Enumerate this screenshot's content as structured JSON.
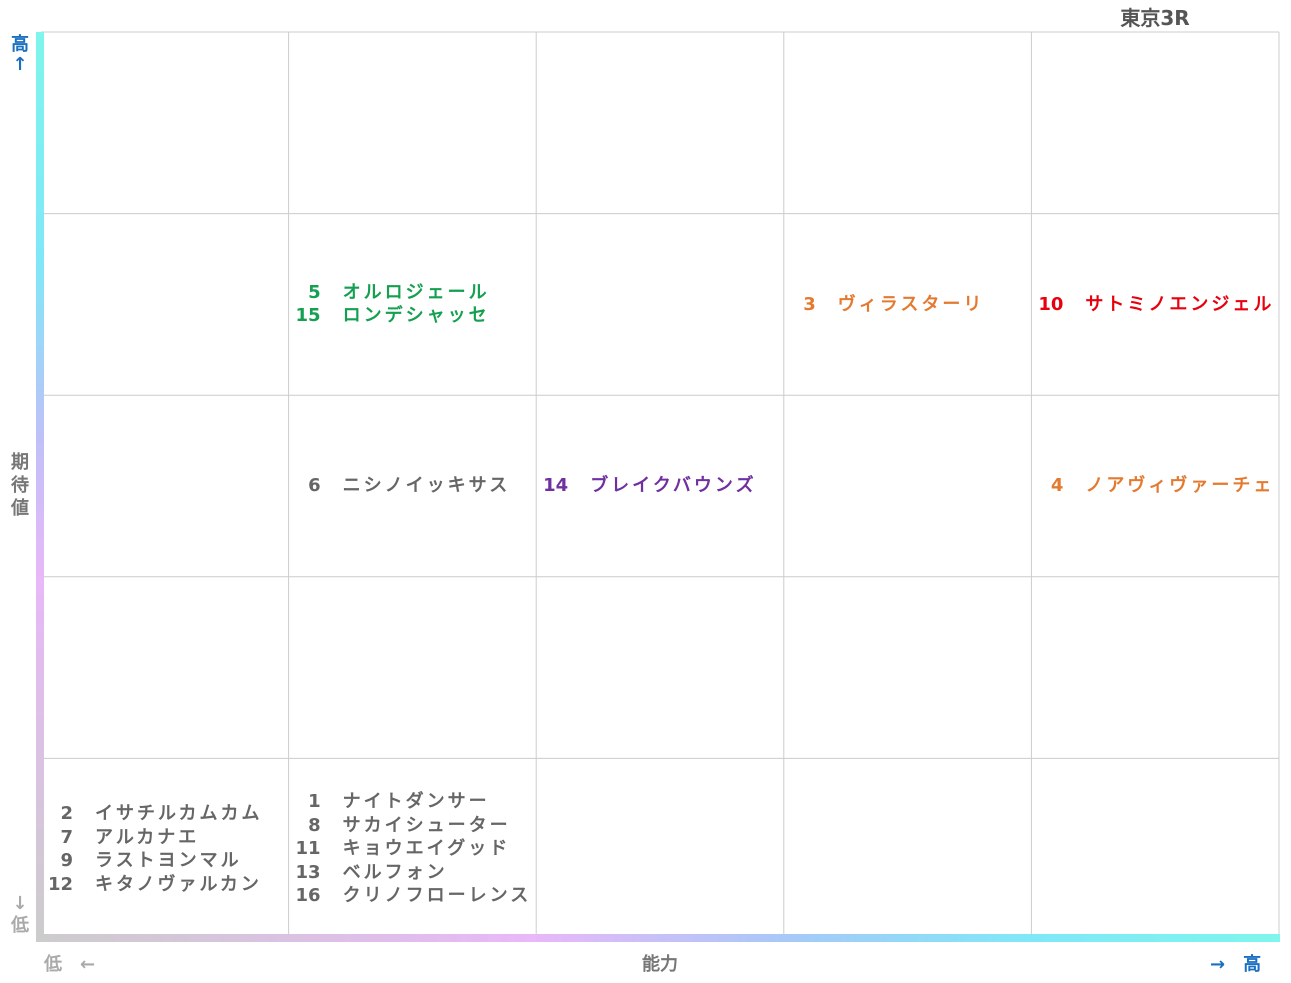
{
  "title": "東京3R",
  "y_axis": {
    "top": [
      "高",
      "↑"
    ],
    "title": [
      "期",
      "待",
      "値"
    ],
    "bottom": [
      "↓",
      "低"
    ]
  },
  "x_axis": {
    "left": "低　←",
    "title": "能力",
    "right": "→　高"
  },
  "grid": [
    [
      [],
      [],
      [],
      [],
      []
    ],
    [
      [],
      [
        {
          "number": 5,
          "name": "オルロジェール",
          "color": "#14a050"
        },
        {
          "number": 15,
          "name": "ロンデシャッセ",
          "color": "#14a050"
        }
      ],
      [],
      [
        {
          "number": 3,
          "name": "ヴィラスターリ",
          "color": "#e47a30"
        }
      ],
      [
        {
          "number": 10,
          "name": "サトミノエンジェル",
          "color": "#e8000e"
        }
      ]
    ],
    [
      [],
      [
        {
          "number": 6,
          "name": "ニシノイッキサス",
          "color": "#666666"
        }
      ],
      [
        {
          "number": 14,
          "name": "ブレイクバウンズ",
          "color": "#7030a0"
        }
      ],
      [],
      [
        {
          "number": 4,
          "name": "ノアヴィヴァーチェ",
          "color": "#e47a30"
        }
      ]
    ],
    [
      [],
      [],
      [],
      [],
      []
    ],
    [
      [
        {
          "number": 2,
          "name": "イサチルカムカム",
          "color": "#666666"
        },
        {
          "number": 7,
          "name": "アルカナエ",
          "color": "#666666"
        },
        {
          "number": 9,
          "name": "ラストヨンマル",
          "color": "#666666"
        },
        {
          "number": 12,
          "name": "キタノヴァルカン",
          "color": "#666666"
        }
      ],
      [
        {
          "number": 1,
          "name": "ナイトダンサー",
          "color": "#666666"
        },
        {
          "number": 8,
          "name": "サカイシューター",
          "color": "#666666"
        },
        {
          "number": 11,
          "name": "キョウエイグッド",
          "color": "#666666"
        },
        {
          "number": 13,
          "name": "ベルフォン",
          "color": "#666666"
        },
        {
          "number": 16,
          "name": "クリノフローレンス",
          "color": "#666666"
        }
      ],
      [],
      [],
      []
    ]
  ]
}
